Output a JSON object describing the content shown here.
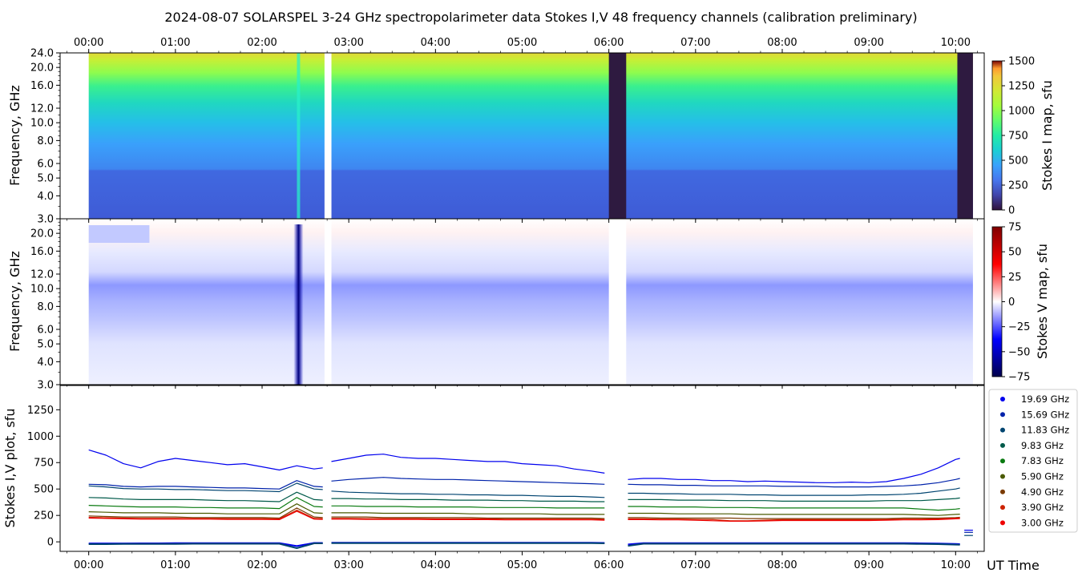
{
  "title": "2024-08-07  SOLARSPEL  3-24 GHz spectropolarimeter data   Stokes I,V   48 frequency channels   (calibration preliminary)",
  "x_axis_label": "UT Time",
  "time_ticks": [
    "00:00",
    "01:00",
    "02:00",
    "03:00",
    "04:00",
    "05:00",
    "06:00",
    "07:00",
    "08:00",
    "09:00",
    "10:00"
  ],
  "chart_data": [
    {
      "type": "heatmap",
      "name": "Stokes I map",
      "ylabel": "Frequency, GHz",
      "colorbar_label": "Stokes I map, sfu",
      "colorbar_ticks": [
        0,
        250,
        500,
        750,
        1000,
        1250,
        1500
      ],
      "clim": [
        0,
        1500
      ],
      "yticks": [
        "3.0",
        "4.0",
        "5.0",
        "6.0",
        "8.0",
        "10.0",
        "12.0",
        "16.0",
        "20.0",
        "24.0"
      ],
      "ylim": [
        3.0,
        24.0
      ],
      "xlim_hours": [
        -0.33,
        10.33
      ],
      "data_range_hours": [
        0.0,
        10.2
      ],
      "gaps_hours": [
        [
          2.72,
          2.8
        ]
      ],
      "band_levels_by_freq": [
        [
          3.0,
          130
        ],
        [
          6.0,
          140
        ],
        [
          6.2,
          250
        ],
        [
          8.0,
          330
        ],
        [
          10.0,
          420
        ],
        [
          12.0,
          480
        ],
        [
          14.0,
          560
        ],
        [
          16.0,
          650
        ],
        [
          18.0,
          760
        ],
        [
          20.0,
          880
        ],
        [
          22.0,
          930
        ],
        [
          24.0,
          960
        ]
      ],
      "saturated_block_hours": [
        [
          6.0,
          6.2
        ],
        [
          10.02,
          10.2
        ]
      ],
      "burst_hours": 2.42,
      "colors": {
        "cmap_low": "#30123b",
        "cmap_mid": "#1ae4b6",
        "cmap_high": "#7a0403"
      }
    },
    {
      "type": "heatmap",
      "name": "Stokes V map",
      "ylabel": "Frequency, GHz",
      "colorbar_label": "Stokes V map, sfu",
      "colorbar_ticks": [
        -75,
        -50,
        -25,
        0,
        25,
        50,
        75
      ],
      "clim": [
        -75,
        75
      ],
      "yticks": [
        "3.0",
        "4.0",
        "5.0",
        "6.0",
        "8.0",
        "10.0",
        "12.0",
        "16.0",
        "20.0"
      ],
      "ylim": [
        3.0,
        24.0
      ],
      "gaps_hours": [
        [
          2.72,
          2.8
        ],
        [
          6.0,
          6.2
        ]
      ],
      "burst_hours": 2.42,
      "colors": {
        "cmap_low": "#00007f",
        "cmap_mid": "#ffffff",
        "cmap_high": "#7f0000"
      }
    },
    {
      "type": "line",
      "name": "Stokes I,V plot",
      "ylabel": "Stokes I,V plot, sfu",
      "yticks": [
        0,
        250,
        500,
        750,
        1000,
        1250
      ],
      "ylim": [
        -90,
        1480
      ],
      "x_hours": [
        0.0,
        0.2,
        0.4,
        0.6,
        0.8,
        1.0,
        1.2,
        1.4,
        1.6,
        1.8,
        2.0,
        2.2,
        2.4,
        2.6,
        2.7,
        2.8,
        3.0,
        3.2,
        3.4,
        3.6,
        3.8,
        4.0,
        4.2,
        4.4,
        4.6,
        4.8,
        5.0,
        5.2,
        5.4,
        5.6,
        5.8,
        5.95,
        6.22,
        6.4,
        6.6,
        6.8,
        7.0,
        7.2,
        7.4,
        7.6,
        7.8,
        8.0,
        8.2,
        8.4,
        8.6,
        8.8,
        9.0,
        9.2,
        9.4,
        9.6,
        9.8,
        10.0,
        10.05
      ],
      "gaps_hours": [
        [
          2.72,
          2.8
        ],
        [
          5.95,
          6.22
        ]
      ],
      "series": [
        {
          "name": "19.69 GHz",
          "color": "#0000ee",
          "values": [
            870,
            820,
            740,
            700,
            760,
            790,
            770,
            750,
            730,
            740,
            710,
            680,
            720,
            690,
            700,
            760,
            790,
            820,
            830,
            800,
            790,
            790,
            780,
            770,
            760,
            760,
            740,
            730,
            720,
            690,
            670,
            650,
            590,
            600,
            600,
            590,
            590,
            580,
            580,
            570,
            575,
            570,
            565,
            560,
            560,
            565,
            560,
            570,
            600,
            640,
            700,
            780,
            790
          ]
        },
        {
          "name": "15.69 GHz",
          "color": "#0022aa",
          "values": [
            545,
            540,
            525,
            520,
            525,
            525,
            520,
            515,
            510,
            510,
            505,
            500,
            580,
            525,
            520,
            575,
            590,
            600,
            610,
            600,
            595,
            590,
            590,
            585,
            580,
            575,
            570,
            565,
            560,
            555,
            550,
            545,
            545,
            540,
            540,
            535,
            535,
            530,
            530,
            530,
            530,
            525,
            525,
            525,
            520,
            520,
            520,
            525,
            530,
            540,
            560,
            590,
            600
          ]
        },
        {
          "name": "11.83 GHz",
          "color": "#004470",
          "values": [
            530,
            520,
            505,
            500,
            500,
            495,
            495,
            490,
            485,
            485,
            480,
            475,
            555,
            500,
            495,
            480,
            470,
            465,
            460,
            455,
            455,
            450,
            450,
            445,
            445,
            440,
            440,
            435,
            430,
            430,
            425,
            420,
            460,
            460,
            455,
            455,
            450,
            450,
            450,
            445,
            445,
            440,
            440,
            440,
            440,
            440,
            445,
            445,
            450,
            460,
            480,
            500,
            510
          ]
        },
        {
          "name": "9.83 GHz",
          "color": "#005a4a",
          "values": [
            420,
            415,
            405,
            400,
            400,
            400,
            400,
            395,
            390,
            390,
            385,
            380,
            470,
            400,
            395,
            410,
            410,
            405,
            405,
            400,
            400,
            400,
            395,
            395,
            395,
            390,
            390,
            385,
            385,
            385,
            380,
            380,
            400,
            400,
            400,
            395,
            395,
            395,
            390,
            390,
            390,
            385,
            385,
            385,
            385,
            385,
            385,
            390,
            390,
            390,
            400,
            410,
            415
          ]
        },
        {
          "name": "7.83 GHz",
          "color": "#0a7a10",
          "values": [
            345,
            340,
            335,
            330,
            330,
            330,
            325,
            325,
            320,
            320,
            320,
            315,
            420,
            335,
            330,
            340,
            340,
            335,
            335,
            335,
            330,
            330,
            330,
            330,
            325,
            325,
            325,
            325,
            320,
            320,
            320,
            320,
            335,
            335,
            330,
            330,
            330,
            325,
            325,
            325,
            320,
            320,
            320,
            320,
            320,
            320,
            320,
            320,
            320,
            310,
            300,
            310,
            315
          ]
        },
        {
          "name": "5.90 GHz",
          "color": "#4a5a00",
          "values": [
            285,
            280,
            275,
            275,
            275,
            270,
            270,
            270,
            265,
            265,
            265,
            265,
            360,
            275,
            270,
            275,
            275,
            275,
            270,
            270,
            270,
            270,
            270,
            265,
            265,
            265,
            265,
            265,
            260,
            260,
            260,
            260,
            270,
            270,
            270,
            265,
            265,
            265,
            265,
            260,
            260,
            260,
            260,
            260,
            260,
            260,
            260,
            260,
            260,
            255,
            250,
            260,
            262
          ]
        },
        {
          "name": "4.90 GHz",
          "color": "#7a3a00",
          "values": [
            245,
            240,
            235,
            235,
            235,
            235,
            230,
            230,
            230,
            230,
            230,
            225,
            320,
            235,
            230,
            235,
            235,
            235,
            230,
            230,
            230,
            230,
            230,
            230,
            225,
            225,
            225,
            225,
            225,
            225,
            225,
            220,
            230,
            230,
            225,
            225,
            225,
            225,
            225,
            220,
            220,
            220,
            220,
            220,
            220,
            220,
            220,
            220,
            225,
            225,
            225,
            230,
            232
          ]
        },
        {
          "name": "3.90 GHz",
          "color": "#cc2200",
          "values": [
            232,
            228,
            225,
            222,
            222,
            222,
            220,
            220,
            220,
            220,
            220,
            218,
            300,
            222,
            220,
            222,
            222,
            220,
            220,
            220,
            220,
            218,
            218,
            218,
            218,
            215,
            215,
            215,
            215,
            215,
            215,
            212,
            218,
            218,
            215,
            215,
            212,
            210,
            200,
            200,
            205,
            210,
            210,
            210,
            210,
            210,
            210,
            212,
            215,
            215,
            218,
            225,
            228
          ]
        },
        {
          "name": "3.00 GHz",
          "color": "#ee0000",
          "values": [
            225,
            222,
            218,
            215,
            215,
            215,
            215,
            215,
            212,
            212,
            212,
            210,
            290,
            215,
            212,
            215,
            215,
            212,
            212,
            212,
            212,
            210,
            210,
            210,
            210,
            208,
            208,
            208,
            208,
            208,
            208,
            205,
            210,
            210,
            208,
            208,
            205,
            200,
            195,
            195,
            198,
            202,
            202,
            202,
            202,
            202,
            202,
            205,
            208,
            208,
            210,
            218,
            220
          ]
        }
      ],
      "stokes_v_series": [
        {
          "name": "V 19.69 GHz",
          "color": "#0000ee",
          "values": [
            -15,
            -15,
            -15,
            -14,
            -14,
            -13,
            -13,
            -12,
            -12,
            -12,
            -12,
            -12,
            -40,
            -10,
            -10,
            -8,
            -8,
            -8,
            -8,
            -8,
            -8,
            -8,
            -8,
            -8,
            -8,
            -8,
            -8,
            -8,
            -8,
            -8,
            -8,
            -10,
            -25,
            -12,
            -12,
            -12,
            -12,
            -12,
            -12,
            -12,
            -12,
            -12,
            -12,
            -12,
            -12,
            -12,
            -12,
            -12,
            -12,
            -14,
            -16,
            -20,
            -22
          ]
        },
        {
          "name": "V 11.83 GHz",
          "color": "#004470",
          "values": [
            -22,
            -22,
            -20,
            -20,
            -20,
            -20,
            -18,
            -18,
            -18,
            -18,
            -18,
            -18,
            -60,
            -14,
            -14,
            -12,
            -12,
            -12,
            -12,
            -12,
            -12,
            -12,
            -12,
            -12,
            -12,
            -12,
            -12,
            -12,
            -12,
            -12,
            -12,
            -14,
            -38,
            -18,
            -18,
            -18,
            -18,
            -18,
            -18,
            -18,
            -18,
            -18,
            -18,
            -18,
            -18,
            -18,
            -18,
            -18,
            -18,
            -20,
            -22,
            -26,
            -28
          ]
        }
      ],
      "after_end_values": [
        [
          10.1,
          110
        ],
        [
          10.1,
          90
        ],
        [
          10.1,
          60
        ]
      ]
    }
  ],
  "legend": [
    {
      "label": "19.69 GHz",
      "color": "#0000ee"
    },
    {
      "label": "15.69 GHz",
      "color": "#0022aa"
    },
    {
      "label": "11.83 GHz",
      "color": "#004470"
    },
    {
      "label": "9.83 GHz",
      "color": "#005a4a"
    },
    {
      "label": "7.83 GHz",
      "color": "#0a7a10"
    },
    {
      "label": "5.90 GHz",
      "color": "#4a5a00"
    },
    {
      "label": "4.90 GHz",
      "color": "#7a3a00"
    },
    {
      "label": "3.90 GHz",
      "color": "#cc2200"
    },
    {
      "label": "3.00 GHz",
      "color": "#ee0000"
    }
  ]
}
